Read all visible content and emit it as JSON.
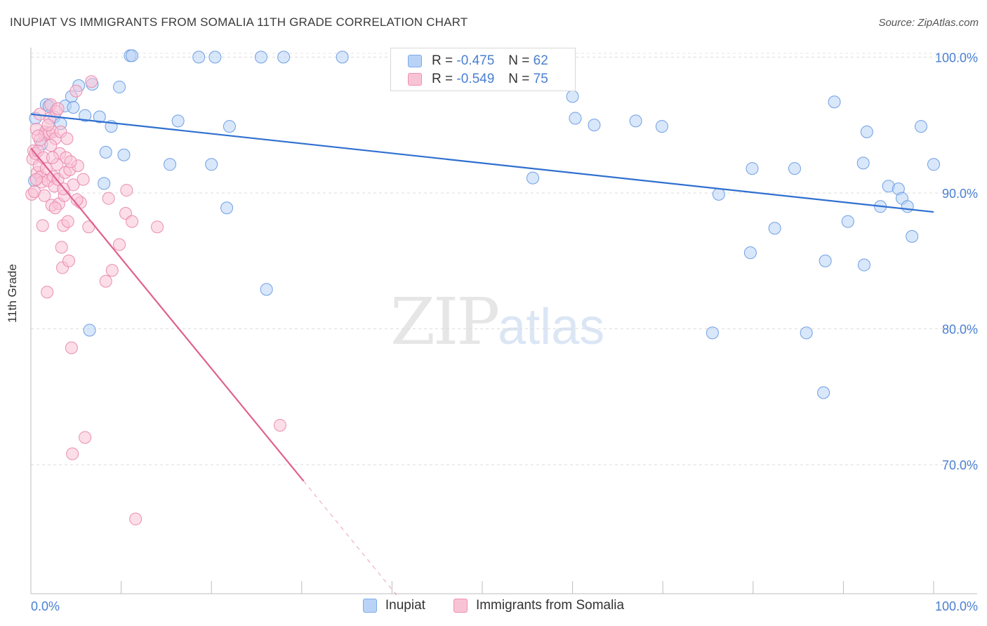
{
  "title": "INUPIAT VS IMMIGRANTS FROM SOMALIA 11TH GRADE CORRELATION CHART",
  "source": "Source: ZipAtlas.com",
  "watermark": {
    "zip": "ZIP",
    "atlas": "atlas"
  },
  "legend": {
    "rows": [
      {
        "r_label": "R =",
        "r_value": "-0.475",
        "n_label": "N =",
        "n_value": "62",
        "fill": "#b9d3f7",
        "stroke": "#7eaae8"
      },
      {
        "r_label": "R =",
        "r_value": "-0.549",
        "n_label": "N =",
        "n_value": "75",
        "fill": "#f9c3d6",
        "stroke": "#ee8fb2"
      }
    ]
  },
  "chart_data": {
    "type": "scatter",
    "title": "INUPIAT VS IMMIGRANTS FROM SOMALIA 11TH GRADE CORRELATION CHART",
    "xlabel": "",
    "ylabel": "11th Grade",
    "xlim": [
      0,
      100
    ],
    "ylim": [
      60.5,
      101
    ],
    "x_tick_labels": [
      {
        "value": 0,
        "label": "0.0%"
      },
      {
        "value": 100,
        "label": "100.0%"
      }
    ],
    "y_ticks": [
      {
        "value": 100,
        "label": "100.0%"
      },
      {
        "value": 90,
        "label": "90.0%"
      },
      {
        "value": 80,
        "label": "80.0%"
      },
      {
        "value": 70,
        "label": "70.0%"
      }
    ],
    "grid": true,
    "legend_position": "top-center",
    "series": [
      {
        "name": "Inupiat",
        "fill": "#b9d3f7",
        "stroke": "#6f9fe3",
        "line_color": "#2f6fd0",
        "trend": {
          "x0": 0,
          "y0": 95.8,
          "x1": 100,
          "y1": 88.6
        },
        "points": [
          [
            0.4,
            90.9
          ],
          [
            0.5,
            95.5
          ],
          [
            1.2,
            93.6
          ],
          [
            1.7,
            96.5
          ],
          [
            2.0,
            96.4
          ],
          [
            2.6,
            95.6
          ],
          [
            3.3,
            95.1
          ],
          [
            3.8,
            96.4
          ],
          [
            4.5,
            97.1
          ],
          [
            4.7,
            96.3
          ],
          [
            5.3,
            97.9
          ],
          [
            6.0,
            95.7
          ],
          [
            6.5,
            79.9
          ],
          [
            6.8,
            98.0
          ],
          [
            7.6,
            95.6
          ],
          [
            8.1,
            90.7
          ],
          [
            8.3,
            93.0
          ],
          [
            8.9,
            94.9
          ],
          [
            9.8,
            97.8
          ],
          [
            10.3,
            92.8
          ],
          [
            11.0,
            100.1
          ],
          [
            11.2,
            100.1
          ],
          [
            15.4,
            92.1
          ],
          [
            16.3,
            95.3
          ],
          [
            18.6,
            100.0
          ],
          [
            20.0,
            92.1
          ],
          [
            20.4,
            100.0
          ],
          [
            21.7,
            88.9
          ],
          [
            22.0,
            94.9
          ],
          [
            25.5,
            100.0
          ],
          [
            26.1,
            82.9
          ],
          [
            28.0,
            100.0
          ],
          [
            34.5,
            100.0
          ],
          [
            47.0,
            100.0
          ],
          [
            55.6,
            91.1
          ],
          [
            60.0,
            97.1
          ],
          [
            60.3,
            95.5
          ],
          [
            62.4,
            95.0
          ],
          [
            67.0,
            95.3
          ],
          [
            69.9,
            94.9
          ],
          [
            75.5,
            79.7
          ],
          [
            76.2,
            89.9
          ],
          [
            79.7,
            85.6
          ],
          [
            79.9,
            91.8
          ],
          [
            82.4,
            87.4
          ],
          [
            84.6,
            91.8
          ],
          [
            85.9,
            79.7
          ],
          [
            87.8,
            75.3
          ],
          [
            88.0,
            85.0
          ],
          [
            89.0,
            96.7
          ],
          [
            90.5,
            87.9
          ],
          [
            92.2,
            92.2
          ],
          [
            92.3,
            84.7
          ],
          [
            92.6,
            94.5
          ],
          [
            94.1,
            89.0
          ],
          [
            95.0,
            90.5
          ],
          [
            96.1,
            90.3
          ],
          [
            96.5,
            89.6
          ],
          [
            97.1,
            89.0
          ],
          [
            97.6,
            86.8
          ],
          [
            98.6,
            94.9
          ],
          [
            100.0,
            92.1
          ]
        ]
      },
      {
        "name": "Immigrants from Somalia",
        "fill": "#f9c3d6",
        "stroke": "#ea8db0",
        "line_color": "#e0608e",
        "trend": {
          "x0": 0,
          "y0": 93.3,
          "x1": 30.2,
          "y1": 68.8
        },
        "trend_dashed": {
          "x0": 30.2,
          "y0": 68.8,
          "x1": 40.5,
          "y1": 60.4
        },
        "points": [
          [
            0.1,
            89.9
          ],
          [
            0.2,
            92.5
          ],
          [
            0.3,
            93.1
          ],
          [
            0.4,
            90.1
          ],
          [
            0.5,
            92.9
          ],
          [
            0.6,
            94.7
          ],
          [
            0.7,
            91.5
          ],
          [
            0.8,
            93.1
          ],
          [
            0.9,
            92.0
          ],
          [
            1.0,
            95.8
          ],
          [
            1.1,
            91.2
          ],
          [
            1.2,
            90.8
          ],
          [
            1.3,
            87.6
          ],
          [
            1.4,
            92.6
          ],
          [
            1.5,
            94.3
          ],
          [
            1.6,
            94.5
          ],
          [
            1.7,
            91.8
          ],
          [
            1.8,
            82.7
          ],
          [
            1.9,
            90.9
          ],
          [
            2.0,
            94.4
          ],
          [
            2.1,
            95.5
          ],
          [
            2.2,
            96.5
          ],
          [
            2.3,
            89.1
          ],
          [
            2.4,
            94.5
          ],
          [
            2.5,
            91.2
          ],
          [
            2.6,
            90.5
          ],
          [
            2.7,
            94.0
          ],
          [
            2.8,
            96.0
          ],
          [
            2.9,
            92.1
          ],
          [
            3.0,
            91.0
          ],
          [
            3.1,
            89.2
          ],
          [
            3.2,
            92.9
          ],
          [
            3.3,
            94.5
          ],
          [
            3.4,
            86.0
          ],
          [
            3.5,
            84.5
          ],
          [
            3.6,
            87.6
          ],
          [
            3.7,
            89.8
          ],
          [
            3.8,
            91.5
          ],
          [
            3.9,
            92.6
          ],
          [
            4.0,
            94.0
          ],
          [
            4.1,
            87.9
          ],
          [
            4.2,
            85.0
          ],
          [
            4.3,
            91.7
          ],
          [
            4.5,
            78.6
          ],
          [
            4.6,
            70.8
          ],
          [
            4.7,
            90.6
          ],
          [
            5.0,
            97.5
          ],
          [
            5.2,
            92.0
          ],
          [
            5.5,
            89.3
          ],
          [
            5.8,
            91.0
          ],
          [
            6.0,
            72.0
          ],
          [
            6.4,
            87.5
          ],
          [
            6.7,
            98.2
          ],
          [
            8.3,
            83.5
          ],
          [
            8.6,
            89.6
          ],
          [
            9.0,
            84.3
          ],
          [
            9.8,
            86.2
          ],
          [
            10.5,
            88.5
          ],
          [
            10.6,
            90.2
          ],
          [
            11.2,
            87.9
          ],
          [
            11.6,
            66.0
          ],
          [
            14.0,
            87.5
          ],
          [
            27.6,
            72.9
          ],
          [
            2.2,
            93.5
          ],
          [
            1.0,
            93.9
          ],
          [
            3.0,
            96.2
          ],
          [
            0.6,
            91.0
          ],
          [
            1.9,
            95.0
          ],
          [
            5.1,
            89.5
          ],
          [
            2.7,
            88.9
          ],
          [
            4.4,
            92.3
          ],
          [
            1.5,
            89.8
          ],
          [
            3.6,
            90.3
          ],
          [
            0.8,
            94.2
          ],
          [
            2.4,
            92.6
          ]
        ]
      }
    ]
  }
}
